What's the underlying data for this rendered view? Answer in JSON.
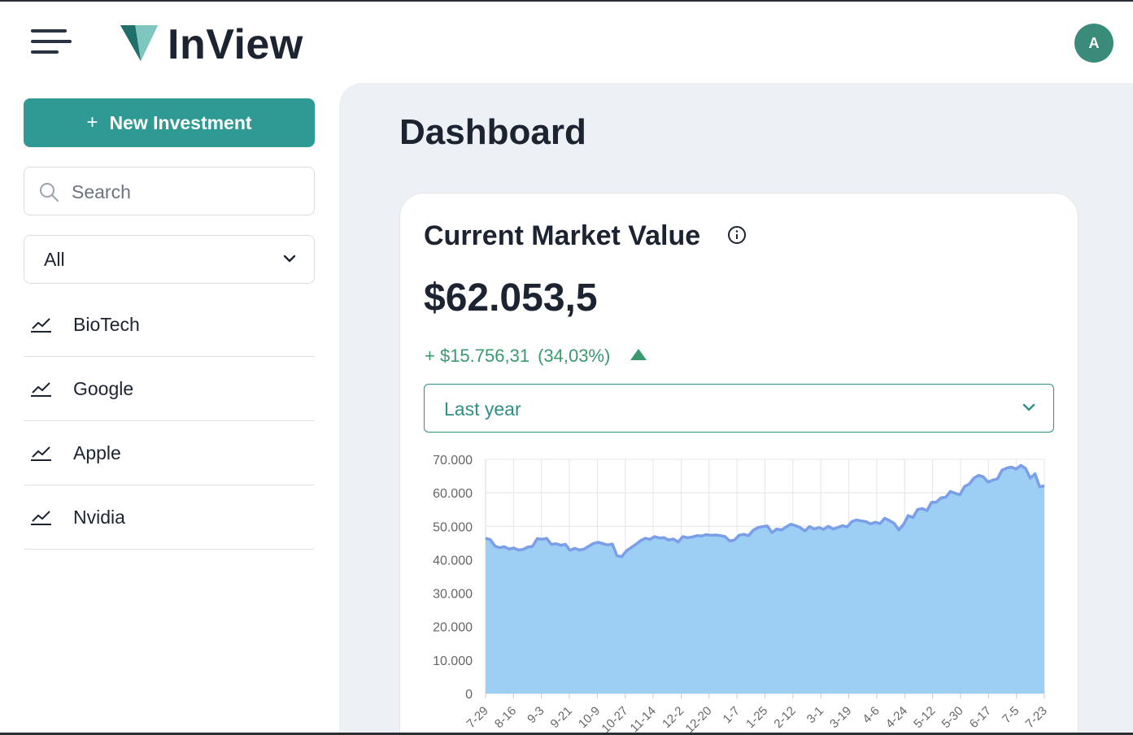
{
  "header": {
    "menu_icon": "hamburger-menu-icon",
    "brand": "InView",
    "logo_icon": "triangle-logo-icon",
    "avatar_initial": "A"
  },
  "colors": {
    "primary": "#2f9a93",
    "accent_green": "#3a9a6e",
    "text_dark": "#1c2331",
    "panel_bg": "#edf1f5",
    "chart_fill": "#9ccff3",
    "chart_line": "#7a9ee8",
    "avatar_bg": "#3a8b7a"
  },
  "sidebar": {
    "new_button_label": "New Investment",
    "new_button_icon": "plus-icon",
    "search_placeholder": "Search",
    "filter_value": "All",
    "items": [
      {
        "label": "BioTech",
        "icon": "trend-line-icon"
      },
      {
        "label": "Google",
        "icon": "trend-line-icon"
      },
      {
        "label": "Apple",
        "icon": "trend-line-icon"
      },
      {
        "label": "Nvidia",
        "icon": "trend-line-icon"
      }
    ]
  },
  "main": {
    "title": "Dashboard",
    "card": {
      "title": "Current Market Value",
      "info_icon": "info-circle-icon",
      "value": "$62.053,5",
      "change_amount": "+ $15.756,31",
      "change_pct": "(34,03%)",
      "trend": "up",
      "period": "Last year"
    }
  },
  "chart_data": {
    "type": "area",
    "ylim": [
      0,
      70000
    ],
    "grid": true,
    "y_ticks": [
      "70.000",
      "60.000",
      "50.000",
      "40.000",
      "30.000",
      "20.000",
      "10.000",
      "0"
    ],
    "x_tick_labels": [
      "7-29",
      "8-16",
      "9-3",
      "9-21",
      "10-9",
      "10-27",
      "11-14",
      "12-2",
      "12-20",
      "1-7",
      "1-25",
      "2-12",
      "3-1",
      "3-19",
      "4-6",
      "4-24",
      "5-12",
      "5-30",
      "6-17",
      "7-5",
      "7-23"
    ],
    "series": [
      {
        "values": [
          46400,
          46000,
          44100,
          43600,
          43900,
          43200,
          43500,
          42900,
          43100,
          43800,
          44000,
          46300,
          46100,
          46400,
          44600,
          44800,
          44300,
          44600,
          42800,
          43400,
          42900,
          43200,
          44100,
          44900,
          45200,
          44800,
          44400,
          44700,
          41200,
          40900,
          42700,
          43600,
          44600,
          45700,
          46400,
          46100,
          46900,
          46500,
          46600,
          45900,
          46200,
          45300,
          46900,
          46600,
          46800,
          47200,
          47100,
          47500,
          47300,
          47400,
          47200,
          46900,
          45600,
          45900,
          47300,
          47600,
          47200,
          48800,
          49600,
          49900,
          50100,
          48100,
          49200,
          48900,
          49800,
          50600,
          50200,
          49600,
          48600,
          49900,
          49200,
          49600,
          49100,
          50000,
          49200,
          49600,
          50200,
          49800,
          51400,
          51900,
          51600,
          51400,
          50700,
          51200,
          50800,
          52400,
          51700,
          50900,
          48900,
          50500,
          53200,
          52600,
          55000,
          55300,
          54700,
          57200,
          57200,
          58500,
          58700,
          60400,
          59900,
          59400,
          61900,
          62600,
          64400,
          65200,
          64800,
          63200,
          63800,
          64200,
          66800,
          67400,
          67700,
          67100,
          68200,
          67300,
          64400,
          65700,
          61800,
          62100
        ]
      }
    ]
  }
}
